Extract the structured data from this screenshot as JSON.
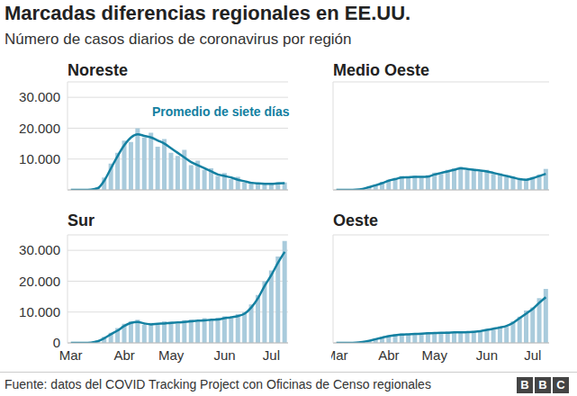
{
  "title": "Marcadas diferencias regionales en EE.UU.",
  "subtitle": "Número de casos diarios de coronavirus por región",
  "source": "Fuente: datos del COVID Tracking Project con Oficinas de Censo regionales",
  "logo": "BBC",
  "chart_data": [
    {
      "type": "bar",
      "title": "Noreste",
      "categories": [
        "Mar",
        null,
        null,
        null,
        null,
        null,
        null,
        null,
        "Abr",
        null,
        null,
        null,
        null,
        null,
        null,
        "May",
        null,
        null,
        null,
        null,
        null,
        null,
        null,
        "Jun",
        null,
        null,
        null,
        null,
        null,
        null,
        "Jul",
        null,
        null
      ],
      "series": [
        {
          "type": "bar",
          "color": "#a9cbdc",
          "values": [
            0,
            0,
            0,
            200,
            900,
            4000,
            8500,
            12000,
            16000,
            15500,
            20000,
            17000,
            18500,
            14000,
            16500,
            12000,
            11000,
            13000,
            8000,
            9500,
            6500,
            7000,
            4500,
            5500,
            3500,
            4200,
            2500,
            2600,
            1800,
            2300,
            1900,
            2500,
            2400
          ]
        },
        {
          "name": "Promedio de siete días",
          "type": "line",
          "color": "#1380a1",
          "values": [
            0,
            0,
            0,
            100,
            500,
            3000,
            7000,
            11000,
            14500,
            17000,
            18000,
            17500,
            17000,
            16000,
            15000,
            13500,
            12000,
            10500,
            9000,
            8000,
            7000,
            6000,
            5000,
            4500,
            4000,
            3300,
            2800,
            2300,
            2100,
            2000,
            2000,
            2100,
            2200
          ]
        }
      ],
      "ylim": [
        0,
        35000
      ],
      "yticks": [
        0,
        {
          "value": 10000,
          "label": "10.000"
        },
        {
          "value": 20000,
          "label": "20.000"
        },
        {
          "value": 30000,
          "label": "30.000"
        }
      ],
      "grid": true,
      "tick_labels": "y"
    },
    {
      "type": "bar",
      "title": "Medio Oeste",
      "categories": [
        "Mar",
        null,
        null,
        null,
        null,
        null,
        null,
        null,
        "Abr",
        null,
        null,
        null,
        null,
        null,
        null,
        "May",
        null,
        null,
        null,
        null,
        null,
        null,
        null,
        "Jun",
        null,
        null,
        null,
        null,
        null,
        null,
        "Jul",
        null,
        null
      ],
      "series": [
        {
          "type": "bar",
          "color": "#a9cbdc",
          "values": [
            0,
            0,
            0,
            100,
            400,
            1200,
            1800,
            2600,
            3300,
            3900,
            4500,
            3800,
            4600,
            4000,
            4800,
            5600,
            5200,
            6500,
            7000,
            7500,
            6400,
            6900,
            6000,
            6500,
            5200,
            5400,
            4200,
            4300,
            3400,
            3600,
            4200,
            5000,
            6800
          ]
        },
        {
          "type": "line",
          "color": "#1380a1",
          "values": [
            0,
            0,
            0,
            50,
            300,
            900,
            1500,
            2200,
            3000,
            3500,
            4000,
            4100,
            4200,
            4200,
            4300,
            5000,
            5500,
            6000,
            6500,
            7000,
            6800,
            6500,
            6300,
            6000,
            5500,
            5000,
            4500,
            4000,
            3500,
            3300,
            3800,
            4500,
            5200
          ]
        }
      ],
      "ylim": [
        0,
        35000
      ],
      "yticks": [
        0,
        {
          "value": 10000,
          "label": "10.000"
        },
        {
          "value": 20000,
          "label": "20.000"
        },
        {
          "value": 30000,
          "label": "30.000"
        }
      ],
      "grid": true,
      "tick_labels": false
    },
    {
      "type": "bar",
      "title": "Sur",
      "categories": [
        "Mar",
        null,
        null,
        null,
        null,
        null,
        null,
        null,
        "Abr",
        null,
        null,
        null,
        null,
        null,
        null,
        "May",
        null,
        null,
        null,
        null,
        null,
        null,
        null,
        "Jun",
        null,
        null,
        null,
        null,
        null,
        null,
        "Jul",
        null,
        null
      ],
      "series": [
        {
          "type": "bar",
          "color": "#a9cbdc",
          "values": [
            0,
            0,
            0,
            200,
            800,
            2000,
            3300,
            4800,
            6200,
            7000,
            7500,
            5800,
            6500,
            5800,
            7000,
            6900,
            6200,
            7400,
            7600,
            6900,
            8000,
            7300,
            8200,
            8600,
            8000,
            9300,
            10000,
            12500,
            15500,
            20000,
            23500,
            28000,
            33000
          ]
        },
        {
          "type": "line",
          "color": "#1380a1",
          "values": [
            0,
            0,
            0,
            100,
            500,
            1500,
            2800,
            4000,
            5500,
            6500,
            6800,
            6300,
            6000,
            6200,
            6300,
            6500,
            6600,
            6800,
            7000,
            7200,
            7300,
            7500,
            7600,
            8000,
            8300,
            8700,
            9500,
            11500,
            14500,
            18500,
            22000,
            26000,
            29500
          ]
        }
      ],
      "ylim": [
        0,
        35000
      ],
      "yticks": [
        0,
        {
          "value": 10000,
          "label": "10.000"
        },
        {
          "value": 20000,
          "label": "20.000"
        },
        {
          "value": 30000,
          "label": "30.000"
        }
      ],
      "grid": true,
      "tick_labels": true
    },
    {
      "type": "bar",
      "title": "Oeste",
      "categories": [
        "Mar",
        null,
        null,
        null,
        null,
        null,
        null,
        null,
        "Abr",
        null,
        null,
        null,
        null,
        null,
        null,
        "May",
        null,
        null,
        null,
        null,
        null,
        null,
        null,
        "Jun",
        null,
        null,
        null,
        null,
        null,
        null,
        "Jul",
        null,
        null
      ],
      "series": [
        {
          "type": "bar",
          "color": "#a9cbdc",
          "values": [
            0,
            0,
            0,
            100,
            400,
            900,
            1500,
            2000,
            2500,
            2900,
            3100,
            2600,
            3200,
            2900,
            3500,
            3300,
            3000,
            3700,
            3200,
            3800,
            3300,
            3900,
            3500,
            4500,
            4300,
            5400,
            5200,
            7000,
            8500,
            10500,
            11500,
            14500,
            17500
          ]
        },
        {
          "type": "line",
          "color": "#1380a1",
          "values": [
            0,
            0,
            0,
            50,
            300,
            700,
            1200,
            1700,
            2200,
            2500,
            2700,
            2800,
            2900,
            3000,
            3100,
            3200,
            3300,
            3300,
            3400,
            3400,
            3500,
            3600,
            3800,
            4200,
            4600,
            5000,
            5500,
            6500,
            8000,
            9500,
            11000,
            13000,
            14800
          ]
        }
      ],
      "ylim": [
        0,
        35000
      ],
      "yticks": [
        0,
        {
          "value": 10000,
          "label": "10.000"
        },
        {
          "value": 20000,
          "label": "20.000"
        },
        {
          "value": 30000,
          "label": "30.000"
        }
      ],
      "grid": true,
      "tick_labels": "x"
    }
  ]
}
